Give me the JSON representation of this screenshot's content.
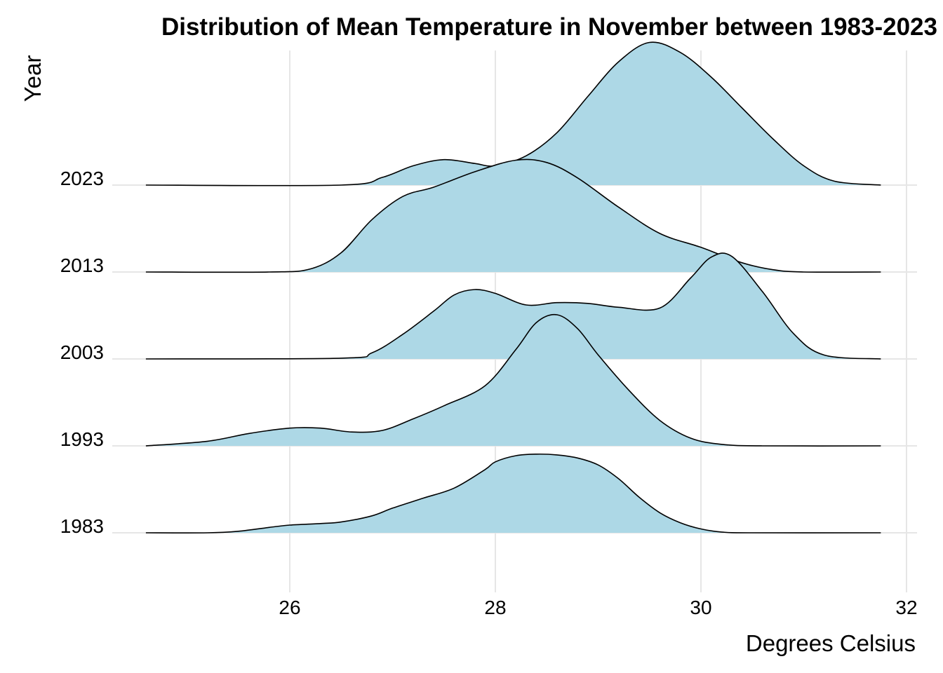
{
  "chart_data": {
    "type": "ridgeline",
    "title": "Distribution of Mean Temperature in November between 1983-2023",
    "xlabel": "Degrees Celsius",
    "ylabel": "Year",
    "xlim": [
      24.6,
      31.75
    ],
    "xticks": [
      26,
      28,
      30,
      32
    ],
    "categories": [
      "1983",
      "1993",
      "2003",
      "2013",
      "2023"
    ],
    "grid": true,
    "legend": "none",
    "fill_color": "#add8e6",
    "outline_color": "#000000",
    "series": [
      {
        "name": "1983",
        "density_curve": {
          "x": [
            24.6,
            25.2,
            25.5,
            25.8,
            26.0,
            26.3,
            26.5,
            26.8,
            27.0,
            27.3,
            27.6,
            27.9,
            28.0,
            28.2,
            28.4,
            28.6,
            28.8,
            29.0,
            29.2,
            29.4,
            29.6,
            29.8,
            30.0,
            30.2,
            30.5,
            31.75
          ],
          "y": [
            0.0,
            0.0,
            0.02,
            0.07,
            0.1,
            0.12,
            0.14,
            0.22,
            0.32,
            0.45,
            0.58,
            0.82,
            0.92,
            1.0,
            1.02,
            1.01,
            0.97,
            0.88,
            0.7,
            0.46,
            0.26,
            0.13,
            0.05,
            0.01,
            0.0,
            0.0
          ]
        }
      },
      {
        "name": "1993",
        "density_curve": {
          "x": [
            24.6,
            25.2,
            25.6,
            26.0,
            26.3,
            26.6,
            26.9,
            27.2,
            27.5,
            27.9,
            28.2,
            28.4,
            28.6,
            28.8,
            29.0,
            29.3,
            29.6,
            29.9,
            30.2,
            30.6,
            31.75
          ],
          "y": [
            0.0,
            0.06,
            0.16,
            0.23,
            0.23,
            0.18,
            0.2,
            0.35,
            0.52,
            0.78,
            1.25,
            1.6,
            1.7,
            1.52,
            1.18,
            0.72,
            0.33,
            0.1,
            0.02,
            0.0,
            0.0
          ]
        }
      },
      {
        "name": "2003",
        "density_curve": {
          "x": [
            24.6,
            26.5,
            26.8,
            27.1,
            27.4,
            27.6,
            27.8,
            28.0,
            28.3,
            28.6,
            28.9,
            29.2,
            29.6,
            29.9,
            30.1,
            30.3,
            30.6,
            30.9,
            31.2,
            31.75
          ],
          "y": [
            0.0,
            0.01,
            0.08,
            0.32,
            0.62,
            0.83,
            0.9,
            0.85,
            0.7,
            0.73,
            0.72,
            0.67,
            0.66,
            1.05,
            1.32,
            1.33,
            0.87,
            0.33,
            0.05,
            0.0
          ]
        }
      },
      {
        "name": "2013",
        "density_curve": {
          "x": [
            24.6,
            25.8,
            26.2,
            26.5,
            26.8,
            27.1,
            27.4,
            27.8,
            28.2,
            28.5,
            28.8,
            29.2,
            29.6,
            30.0,
            30.4,
            30.7,
            31.0,
            31.75
          ],
          "y": [
            0.0,
            0.0,
            0.04,
            0.25,
            0.68,
            0.98,
            1.1,
            1.3,
            1.45,
            1.42,
            1.22,
            0.84,
            0.5,
            0.32,
            0.12,
            0.03,
            0.0,
            0.0
          ]
        }
      },
      {
        "name": "2023",
        "density_curve": {
          "x": [
            24.6,
            26.5,
            26.9,
            27.2,
            27.5,
            27.8,
            28.0,
            28.3,
            28.6,
            28.9,
            29.2,
            29.5,
            29.8,
            30.1,
            30.4,
            30.7,
            31.0,
            31.3,
            31.75
          ],
          "y": [
            0.0,
            0.0,
            0.1,
            0.25,
            0.33,
            0.28,
            0.25,
            0.38,
            0.68,
            1.15,
            1.6,
            1.85,
            1.72,
            1.4,
            1.0,
            0.6,
            0.25,
            0.05,
            0.0
          ]
        }
      }
    ]
  }
}
